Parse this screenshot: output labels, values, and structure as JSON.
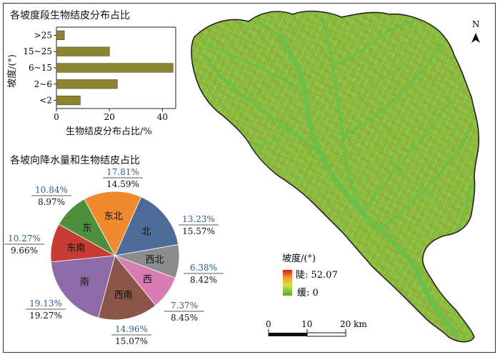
{
  "bar_panel": {
    "title": "各坡度段生物结皮分布占比"
  },
  "pie_panel": {
    "title": "各坡向降水量和生物结皮占比"
  },
  "chart_data": [
    {
      "type": "bar",
      "orientation": "horizontal",
      "title": "各坡度段生物结皮分布占比",
      "categories": [
        ">25",
        "15~25",
        "6~15",
        "2~6",
        "<2"
      ],
      "values": [
        3,
        20,
        44,
        23,
        9
      ],
      "xlabel": "生物结皮分布占比/%",
      "ylabel": "坡度/(°)",
      "xlim": [
        0,
        45
      ],
      "xticks": [
        "0",
        "20",
        "40"
      ],
      "bar_color": "#8a8433"
    },
    {
      "type": "pie",
      "title": "各坡向降水量和生物结皮占比",
      "slices": [
        {
          "label": "北",
          "value": 15.57,
          "top": "13.23%",
          "bottom": "15.57%",
          "color": "#4d6b98"
        },
        {
          "label": "西北",
          "value": 8.42,
          "top": "6.38%",
          "bottom": "8.42%",
          "color": "#8c8c8c"
        },
        {
          "label": "西",
          "value": 8.45,
          "top": "7.37%",
          "bottom": "8.45%",
          "color": "#d97cb3"
        },
        {
          "label": "西南",
          "value": 15.07,
          "top": "14.96%",
          "bottom": "15.07%",
          "color": "#8b5548"
        },
        {
          "label": "南",
          "value": 19.27,
          "top": "19.13%",
          "bottom": "19.27%",
          "color": "#8f6aa8"
        },
        {
          "label": "东南",
          "value": 9.66,
          "top": "10.27%",
          "bottom": "9.66%",
          "color": "#c83a34"
        },
        {
          "label": "东",
          "value": 8.97,
          "top": "10.84%",
          "bottom": "8.97%",
          "color": "#4c8f3c"
        },
        {
          "label": "东北",
          "value": 14.59,
          "top": "17.81%",
          "bottom": "14.59%",
          "color": "#ef8a2f"
        }
      ]
    }
  ],
  "map": {
    "north_label": "N",
    "legend_title": "坡度/(°)",
    "legend_high": "陡: 52.07",
    "legend_low": "缓: 0",
    "scale_labels": [
      "0",
      "10",
      "20 km"
    ],
    "colors": {
      "steep": "#e8302a",
      "gentle": "#5fb83a",
      "channel": "#6fbe4a",
      "boundary": "#222222"
    }
  }
}
